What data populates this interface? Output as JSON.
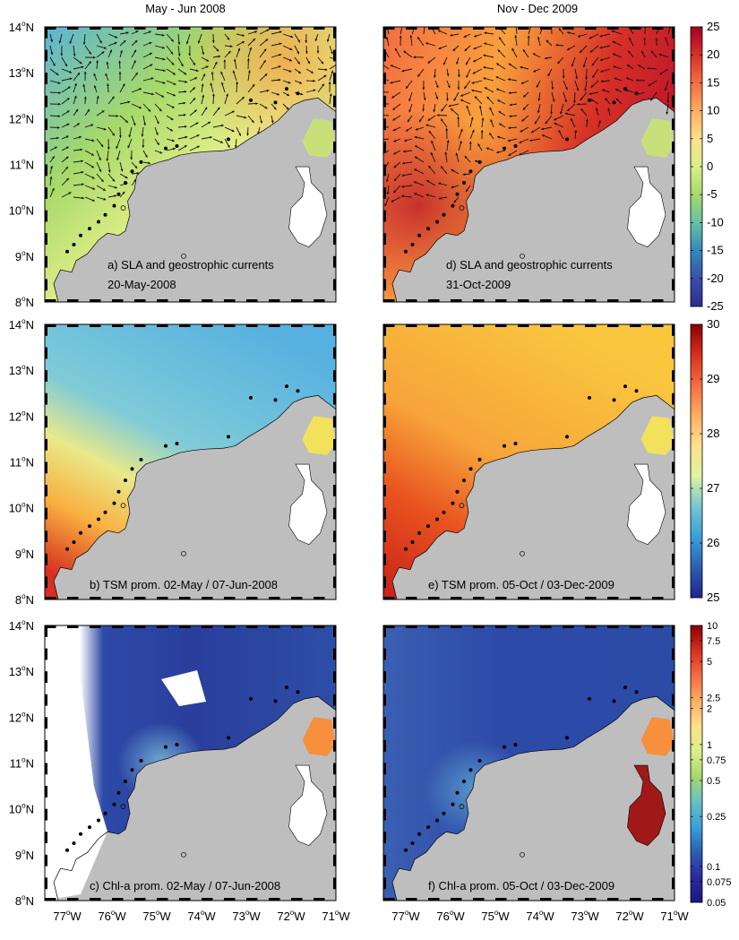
{
  "columns": [
    {
      "title": "May - Jun 2008"
    },
    {
      "title": "Nov - Dec 2009"
    }
  ],
  "panels": [
    {
      "id": "a",
      "field": "sla",
      "label_line1": "a) SLA and geostrophic currents",
      "label_line2": "20-May-2008",
      "scheme": "sla_2008",
      "arrows": true
    },
    {
      "id": "d",
      "field": "sla",
      "label_line1": "d) SLA and geostrophic currents",
      "label_line2": "31-Oct-2009",
      "scheme": "sla_2009",
      "arrows": true
    },
    {
      "id": "b",
      "field": "sst",
      "label_line1": "b) TSM prom. 02-May / 07-Jun-2008",
      "label_line2": "",
      "scheme": "sst_2008",
      "arrows": false
    },
    {
      "id": "e",
      "field": "sst",
      "label_line1": "e) TSM prom. 05-Oct / 03-Dec-2009",
      "label_line2": "",
      "scheme": "sst_2009",
      "arrows": false
    },
    {
      "id": "c",
      "field": "chl",
      "label_line1": "c) Chl-a prom. 02-May / 07-Jun-2008",
      "label_line2": "",
      "scheme": "chl_2008",
      "arrows": false
    },
    {
      "id": "f",
      "field": "chl",
      "label_line1": "f) Chl-a prom. 05-Oct / 03-Dec-2009",
      "label_line2": "",
      "scheme": "chl_2009",
      "arrows": false
    }
  ],
  "lat_labels": [
    "14",
    "13",
    "12",
    "11",
    "10",
    "9",
    "8"
  ],
  "lon_labels": [
    "77",
    "76",
    "75",
    "74",
    "73",
    "72",
    "71"
  ],
  "lat_suffix": "N",
  "lon_suffix": "W",
  "degree_symbol": "o",
  "colorbars": [
    {
      "field": "sla",
      "ticks": [
        "25",
        "20",
        "15",
        "10",
        "5",
        "0",
        "-5",
        "-10",
        "-15",
        "-20",
        "-25"
      ],
      "tick_positions": [
        0,
        0.1,
        0.2,
        0.3,
        0.4,
        0.5,
        0.6,
        0.7,
        0.8,
        0.9,
        1.0
      ],
      "colors": [
        "#a50026",
        "#d73027",
        "#f46d43",
        "#fdae61",
        "#fee08b",
        "#d9ef8b",
        "#a6d96a",
        "#66c2a5",
        "#3288bd",
        "#3a4fa8",
        "#2b2d8e"
      ]
    },
    {
      "field": "sst",
      "ticks": [
        "30",
        "29",
        "28",
        "27",
        "26",
        "25"
      ],
      "tick_positions": [
        0,
        0.2,
        0.4,
        0.6,
        0.8,
        1.0
      ],
      "colors": [
        "#8b0000",
        "#d7301f",
        "#f46d43",
        "#fdae61",
        "#fee090",
        "#e0f3a0",
        "#74c6d4",
        "#3b9fd8",
        "#2b5fb0",
        "#23238e"
      ]
    },
    {
      "field": "chl",
      "ticks": [
        "10",
        "7.5",
        "5",
        "2.5",
        "2",
        "1",
        "0.75",
        "0.5",
        "0.25",
        "0.1",
        "0.075",
        "0.05"
      ],
      "tick_positions": [
        0,
        0.055,
        0.13,
        0.26,
        0.3,
        0.43,
        0.485,
        0.56,
        0.69,
        0.87,
        0.925,
        1.0
      ],
      "colors": [
        "#8b0000",
        "#d7301f",
        "#f46d43",
        "#fdae61",
        "#fee08b",
        "#d9ef8b",
        "#a6d96a",
        "#66c2c5",
        "#3b9fd8",
        "#2b5fb0",
        "#2a2a9e",
        "#1a1a80"
      ]
    }
  ],
  "colors": {
    "land": "#bebebe",
    "frame": "#000000",
    "no_data": "#ffffff",
    "station": "#000000"
  },
  "stations": [
    {
      "lon": -77.0,
      "lat": 9.1
    },
    {
      "lon": -76.85,
      "lat": 9.25
    },
    {
      "lon": -76.7,
      "lat": 9.45
    },
    {
      "lon": -76.5,
      "lat": 9.6
    },
    {
      "lon": -76.3,
      "lat": 9.75
    },
    {
      "lon": -76.15,
      "lat": 9.9
    },
    {
      "lon": -75.95,
      "lat": 10.1
    },
    {
      "lon": -75.85,
      "lat": 10.35
    },
    {
      "lon": -75.7,
      "lat": 10.6
    },
    {
      "lon": -75.55,
      "lat": 10.85
    },
    {
      "lon": -75.35,
      "lat": 11.05
    },
    {
      "lon": -74.8,
      "lat": 11.35
    },
    {
      "lon": -74.55,
      "lat": 11.4
    },
    {
      "lon": -73.4,
      "lat": 11.55
    },
    {
      "lon": -72.9,
      "lat": 12.4
    },
    {
      "lon": -72.35,
      "lat": 12.35
    },
    {
      "lon": -72.1,
      "lat": 12.65
    },
    {
      "lon": -71.85,
      "lat": 12.55
    }
  ]
}
